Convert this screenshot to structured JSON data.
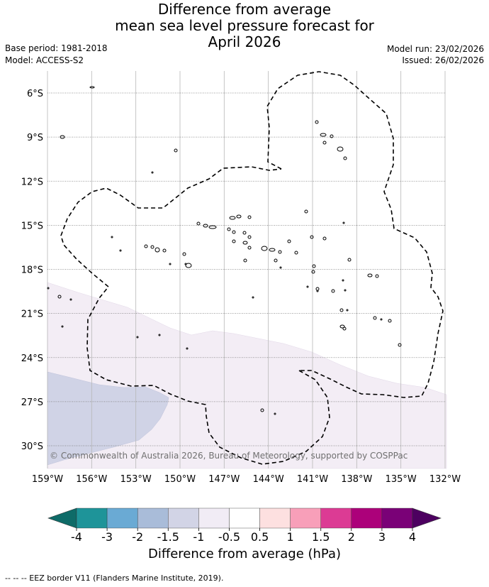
{
  "title_lines": [
    "Difference from average",
    "mean sea level pressure forecast for",
    "April 2026"
  ],
  "base_period": "Base period: 1981-2018",
  "model": "Model: ACCESS-S2",
  "model_run": "Model run: 23/02/2026",
  "issued": "Issued: 26/02/2026",
  "copyright": "© Commonwealth of Australia 2026, Bureau of Meteorology, supported by COSPPac",
  "map": {
    "lon_range": [
      -159,
      -132
    ],
    "lat_range": [
      -31.5,
      -4.5
    ],
    "lon_ticks": [
      -159,
      -156,
      -153,
      -150,
      -147,
      -144,
      -141,
      -138,
      -135,
      -132
    ],
    "lon_labels": [
      "159°W",
      "156°W",
      "153°W",
      "150°W",
      "147°W",
      "144°W",
      "141°W",
      "138°W",
      "135°W",
      "132°W"
    ],
    "lat_ticks": [
      -6,
      -9,
      -12,
      -15,
      -18,
      -21,
      -24,
      -27,
      -30
    ],
    "lat_labels": [
      "6°S",
      "9°S",
      "12°S",
      "15°S",
      "18°S",
      "21°S",
      "24°S",
      "27°S",
      "30°S"
    ]
  },
  "colorbar": {
    "title": "Difference from average (hPa)",
    "tick_labels": [
      "-4",
      "-3",
      "-2",
      "-1.5",
      "-1",
      "-0.5",
      "0.5",
      "1",
      "1.5",
      "2",
      "3",
      "4"
    ],
    "colors": [
      "#0e6b68",
      "#1e9499",
      "#6aaad4",
      "#a9bcd9",
      "#d2d4e6",
      "#f1ecf5",
      "#ffffff",
      "#fde0e0",
      "#f89fb9",
      "#dc3b94",
      "#ac017a",
      "#7a0177",
      "#4d0060"
    ]
  },
  "eez_note": "-- -- -- EEZ border V11 (Flanders Marine Institute, 2019)."
}
